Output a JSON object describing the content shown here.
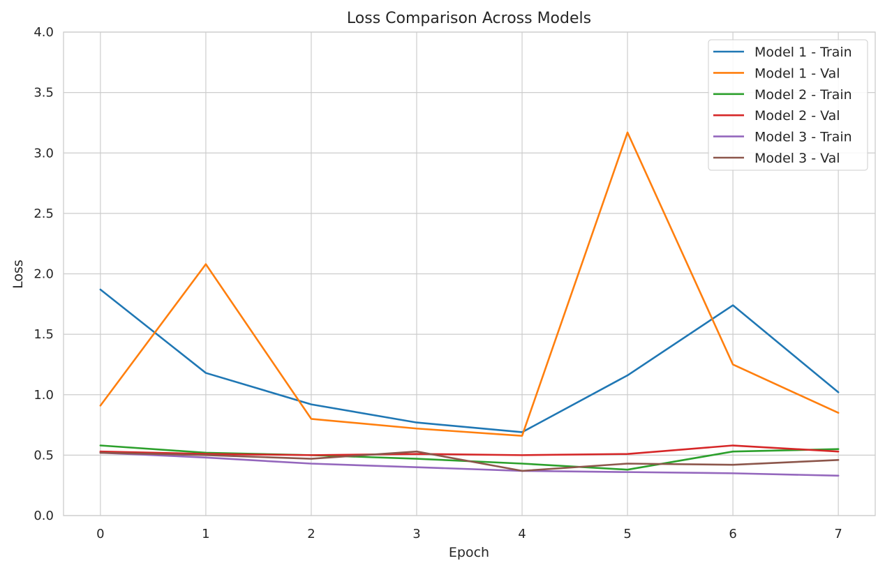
{
  "chart_data": {
    "type": "line",
    "title": "Loss Comparison Across Models",
    "xlabel": "Epoch",
    "ylabel": "Loss",
    "x": [
      0,
      1,
      2,
      3,
      4,
      5,
      6,
      7
    ],
    "xlim": [
      -0.35,
      7.35
    ],
    "ylim": [
      0,
      4
    ],
    "yticks": [
      "0.0",
      "0.5",
      "1.0",
      "1.5",
      "2.0",
      "2.5",
      "3.0",
      "3.5",
      "4.0"
    ],
    "xticks": [
      "0",
      "1",
      "2",
      "3",
      "4",
      "5",
      "6",
      "7"
    ],
    "grid": true,
    "legend_position": "top-right",
    "series": [
      {
        "name": "Model 1 - Train",
        "color": "#1f77b4",
        "values": [
          1.87,
          1.18,
          0.92,
          0.77,
          0.69,
          1.16,
          1.74,
          1.02
        ]
      },
      {
        "name": "Model 1 - Val",
        "color": "#ff7f0e",
        "values": [
          0.91,
          2.08,
          0.8,
          0.72,
          0.66,
          3.17,
          1.25,
          0.85
        ]
      },
      {
        "name": "Model 2 - Train",
        "color": "#2ca02c",
        "values": [
          0.58,
          0.52,
          0.5,
          0.47,
          0.43,
          0.38,
          0.53,
          0.55
        ]
      },
      {
        "name": "Model 2 - Val",
        "color": "#d62728",
        "values": [
          0.53,
          0.51,
          0.5,
          0.51,
          0.5,
          0.51,
          0.58,
          0.53
        ]
      },
      {
        "name": "Model 3 - Train",
        "color": "#9467bd",
        "values": [
          0.52,
          0.48,
          0.43,
          0.4,
          0.37,
          0.36,
          0.35,
          0.33
        ]
      },
      {
        "name": "Model 3 - Val",
        "color": "#8c564b",
        "values": [
          0.52,
          0.5,
          0.47,
          0.53,
          0.37,
          0.43,
          0.42,
          0.46
        ]
      }
    ]
  }
}
